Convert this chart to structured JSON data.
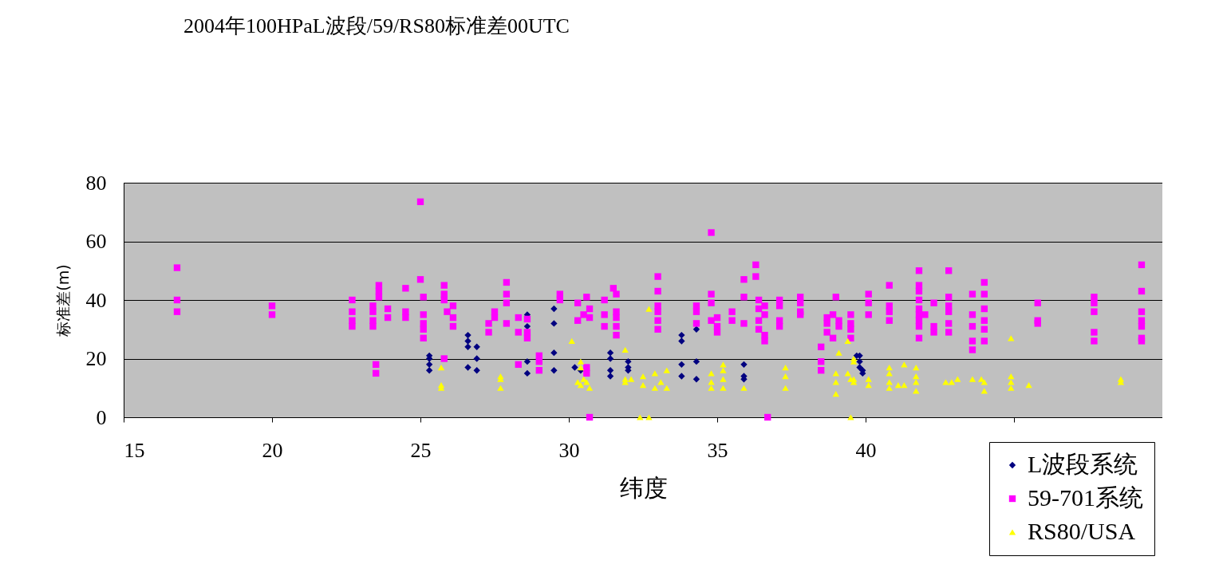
{
  "chart_data": {
    "type": "scatter",
    "title": "2004年100HPaL波段/59/RS80标准差00UTC",
    "xlabel": "纬度",
    "ylabel": "标准差(m)",
    "xlim": [
      15,
      50
    ],
    "xticks": [
      15,
      20,
      25,
      30,
      35,
      40,
      {
        "value": 45,
        "label": null
      }
    ],
    "ylim": [
      0,
      80
    ],
    "yticks": [
      0,
      20,
      40,
      60,
      80
    ],
    "grid": "y",
    "legend": "bottom right",
    "series": [
      {
        "name": "L波段系统",
        "color": "#000080",
        "marker": "diamond",
        "x": [
          25.3,
          25.3,
          25.3,
          25.3,
          26.6,
          26.6,
          26.6,
          26.9,
          26.9,
          26.6,
          26.9,
          28.6,
          28.6,
          28.6,
          28.6,
          29.5,
          29.5,
          29.5,
          29.5,
          30.2,
          30.4,
          31.4,
          31.4,
          31.4,
          31.4,
          32.0,
          32.0,
          32.0,
          33.8,
          33.8,
          33.8,
          33.8,
          34.3,
          34.3,
          34.3,
          35.9,
          35.9,
          35.9,
          39.7,
          39.8,
          39.8,
          39.8,
          39.9,
          39.9
        ],
        "values": [
          21,
          20,
          18,
          16,
          28,
          26,
          24,
          24,
          20,
          17,
          16,
          35,
          31,
          19,
          15,
          37,
          32,
          22,
          16,
          17,
          16,
          22,
          20,
          16,
          14,
          19,
          17,
          16,
          28,
          26,
          18,
          14,
          30,
          19,
          13,
          18,
          14,
          13,
          21,
          21,
          19,
          17,
          16,
          15
        ]
      },
      {
        "name": "59-701系统",
        "color": "#ff00ff",
        "marker": "square",
        "x": [
          16.8,
          16.8,
          16.8,
          20.0,
          20.0,
          22.7,
          22.7,
          22.7,
          22.7,
          23.4,
          23.4,
          23.4,
          23.4,
          23.5,
          23.5,
          23.6,
          23.6,
          23.6,
          23.9,
          23.9,
          24.5,
          24.5,
          24.5,
          25.0,
          25.0,
          25.1,
          25.1,
          25.1,
          25.1,
          25.1,
          25.8,
          25.8,
          25.8,
          26.1,
          25.9,
          26.1,
          26.1,
          25.8,
          27.3,
          27.3,
          27.5,
          27.5,
          27.9,
          27.9,
          27.9,
          27.9,
          28.3,
          28.3,
          28.6,
          28.6,
          28.6,
          28.3,
          29.0,
          29.0,
          29.0,
          29.7,
          29.7,
          30.3,
          30.3,
          30.5,
          30.7,
          30.7,
          30.6,
          30.6,
          30.6,
          30.7,
          31.2,
          31.2,
          31.2,
          31.5,
          31.6,
          31.6,
          31.6,
          31.6,
          31.6,
          33.0,
          33.0,
          33.0,
          33.0,
          33.0,
          33.0,
          34.3,
          34.3,
          34.3,
          34.8,
          34.8,
          34.8,
          34.8,
          35.0,
          35.0,
          35.0,
          35.5,
          35.5,
          35.9,
          35.9,
          35.9,
          36.3,
          36.3,
          36.4,
          36.4,
          36.4,
          36.4,
          36.6,
          36.6,
          36.6,
          36.6,
          36.7,
          37.1,
          37.1,
          37.1,
          37.1,
          37.8,
          37.8,
          37.8,
          37.8,
          38.5,
          38.5,
          38.5,
          38.7,
          38.7,
          38.7,
          38.9,
          38.9,
          39.0,
          39.1,
          39.1,
          39.5,
          39.5,
          39.5,
          39.5,
          40.1,
          40.1,
          40.1,
          40.8,
          40.8,
          40.8,
          40.8,
          41.8,
          41.8,
          41.8,
          41.8,
          41.8,
          41.8,
          41.8,
          41.8,
          41.8,
          42.3,
          42.3,
          42.3,
          42.0,
          42.8,
          42.8,
          42.8,
          42.8,
          42.8,
          42.8,
          43.6,
          43.6,
          43.6,
          43.6,
          43.6,
          44.0,
          44.0,
          44.0,
          44.0,
          44.0,
          44.0,
          45.8,
          45.8,
          45.8,
          47.7,
          47.7,
          47.7,
          47.7,
          47.7,
          49.3,
          49.3,
          49.3,
          49.3,
          49.3,
          49.3,
          49.3
        ],
        "values": [
          51,
          40,
          36,
          38,
          35,
          40,
          36,
          33,
          31,
          38,
          36,
          33,
          31,
          18,
          15,
          45,
          43,
          41,
          37,
          34,
          44,
          36,
          34,
          73.5,
          47,
          41,
          35,
          32,
          30,
          27,
          45,
          42,
          40,
          38,
          36,
          34,
          31,
          20,
          32,
          29,
          34,
          36,
          46,
          42,
          39,
          32,
          34,
          29,
          33.5,
          29,
          27,
          18,
          21,
          19,
          16,
          42,
          40,
          39,
          33,
          35,
          37,
          34,
          41,
          17,
          15,
          0,
          40,
          35,
          31,
          44,
          42,
          36,
          34,
          31,
          28,
          48,
          43,
          38,
          36,
          33,
          30,
          38,
          36,
          32,
          63,
          42,
          39,
          33,
          34,
          31,
          29,
          36,
          33,
          47,
          41,
          32,
          52,
          48,
          40,
          37,
          33,
          30,
          38,
          35,
          28,
          26,
          0,
          40,
          38,
          33,
          31,
          41,
          39,
          36,
          35,
          24,
          19,
          16,
          34,
          32,
          29,
          35,
          27,
          41,
          33,
          31,
          35,
          32,
          30,
          27,
          42,
          39,
          35,
          45,
          38,
          36,
          33,
          50,
          45,
          43,
          40,
          37,
          35,
          33,
          31,
          27,
          39,
          31,
          29,
          35,
          50,
          41,
          38,
          36,
          32,
          29,
          42,
          35,
          31,
          26,
          23,
          46,
          42,
          37,
          33,
          30,
          26,
          39,
          33,
          32,
          41,
          39,
          36,
          29,
          26,
          52,
          43,
          36,
          33,
          31,
          26,
          27
        ]
      },
      {
        "name": "RS80/USA",
        "color": "#ffff00",
        "marker": "triangle",
        "x": [
          25.7,
          25.7,
          25.7,
          27.7,
          27.7,
          27.7,
          30.1,
          30.4,
          30.4,
          30.5,
          30.6,
          30.4,
          30.7,
          30.3,
          31.9,
          32.7,
          31.9,
          31.9,
          32.1,
          32.5,
          32.5,
          32.9,
          32.9,
          33.1,
          33.3,
          33.3,
          32.4,
          32.7,
          34.8,
          34.8,
          34.8,
          35.2,
          35.2,
          35.2,
          35.2,
          35.9,
          37.3,
          37.3,
          37.3,
          39.0,
          39.0,
          39.0,
          39.1,
          39.4,
          39.4,
          39.5,
          39.6,
          39.5,
          39.6,
          39.6,
          39.6,
          40.1,
          40.1,
          40.8,
          40.8,
          40.8,
          40.8,
          41.3,
          41.1,
          41.3,
          41.7,
          41.7,
          41.7,
          41.7,
          42.7,
          42.9,
          43.1,
          43.6,
          43.9,
          44.0,
          44.0,
          44.9,
          44.9,
          44.9,
          44.9,
          45.5,
          48.6,
          48.6
        ],
        "values": [
          17,
          11,
          10,
          14,
          13,
          10,
          26,
          19,
          17,
          13,
          12,
          11,
          10,
          12,
          23,
          37,
          13,
          12,
          13,
          14,
          11,
          15,
          10,
          12,
          16,
          10,
          0,
          0,
          15,
          12,
          10,
          18,
          16,
          13,
          10,
          10,
          17,
          14,
          10,
          15,
          12,
          8,
          22,
          26,
          15,
          13,
          20,
          0,
          19,
          13,
          12,
          13,
          11,
          17,
          15,
          12,
          10,
          18,
          11,
          11,
          17,
          14,
          12,
          9,
          12,
          12,
          13,
          13,
          13,
          12,
          9,
          27,
          14,
          12,
          10,
          11,
          13,
          12
        ]
      }
    ]
  }
}
